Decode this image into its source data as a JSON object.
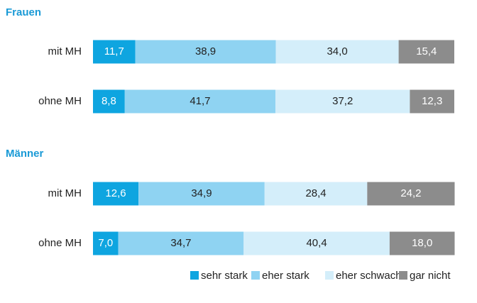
{
  "chart_data": [
    {
      "type": "bar",
      "orientation": "horizontal",
      "stacked": true,
      "title": "Frauen",
      "categories": [
        "mit MH",
        "ohne MH"
      ],
      "xlim": [
        0,
        100
      ],
      "series": [
        {
          "name": "sehr stark",
          "color": "#0ea5e0",
          "values": [
            11.7,
            8.8
          ],
          "value_labels": [
            "11,7",
            "8,8"
          ]
        },
        {
          "name": "eher stark",
          "color": "#8fd3f2",
          "values": [
            38.9,
            41.7
          ],
          "value_labels": [
            "38,9",
            "41,7"
          ]
        },
        {
          "name": "eher schwach",
          "color": "#d4eefa",
          "values": [
            34.0,
            37.2
          ],
          "value_labels": [
            "34,0",
            "37,2"
          ]
        },
        {
          "name": "gar nicht",
          "color": "#8c8c8c",
          "values": [
            15.4,
            12.3
          ],
          "value_labels": [
            "15,4",
            "12,3"
          ]
        }
      ]
    },
    {
      "type": "bar",
      "orientation": "horizontal",
      "stacked": true,
      "title": "Männer",
      "categories": [
        "mit MH",
        "ohne MH"
      ],
      "xlim": [
        0,
        100
      ],
      "series": [
        {
          "values": [
            12.6,
            7.0
          ],
          "value_labels": [
            "12,6",
            "7,0"
          ]
        },
        {
          "values": [
            34.9,
            34.7
          ],
          "value_labels": [
            "34,9",
            "34,7"
          ]
        },
        {
          "values": [
            28.4,
            40.4
          ],
          "value_labels": [
            "28,4",
            "40,4"
          ]
        },
        {
          "values": [
            24.2,
            18.0
          ],
          "value_labels": [
            "24,2",
            "18,0"
          ]
        }
      ]
    }
  ]
}
